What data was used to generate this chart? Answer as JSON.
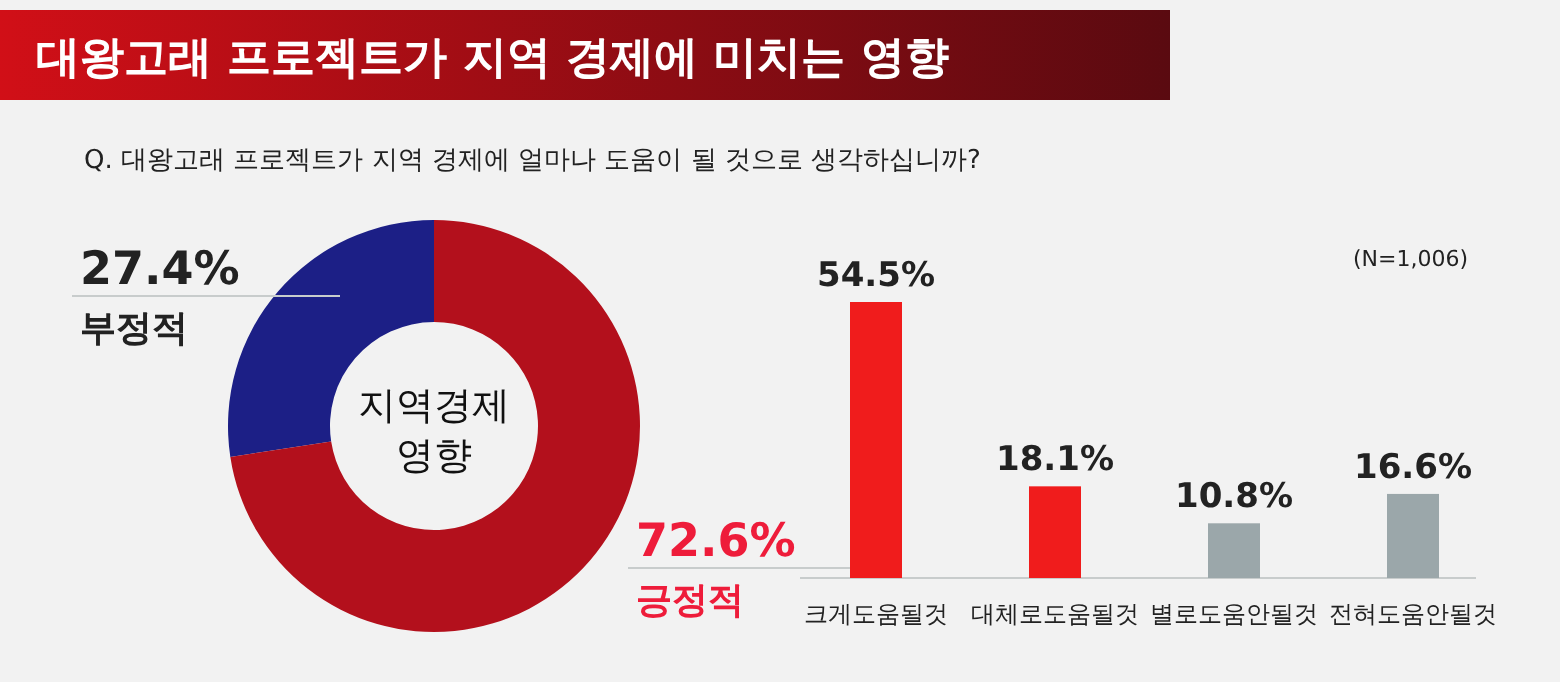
{
  "chart_data": [
    {
      "type": "donut",
      "title": "대왕고래 프로젝트가 지역 경제에 미치는 영향",
      "subtitle": "Q. 대왕고래 프로젝트가 지역 경제에 얼마나 도움이 될 것으로 생각하십니까?",
      "categories": [
        "부정적",
        "긍정적"
      ],
      "values": [
        27.4,
        72.6
      ],
      "colors": [
        "#1c1f86",
        "#b3101c"
      ],
      "value_labels": [
        "27.4%",
        "72.6%"
      ],
      "annotations": [
        "지역경제 영향"
      ]
    },
    {
      "type": "bar",
      "categories": [
        "크게도움될것",
        "대체로도움될것",
        "별로도움안될것",
        "전혀도움안될것"
      ],
      "values": [
        54.5,
        18.1,
        10.8,
        16.6
      ],
      "colors": [
        "#f01c1c",
        "#f01c1c",
        "#9ba7aa",
        "#9ba7aa"
      ],
      "value_labels": [
        "54.5%",
        "18.1%",
        "10.8%",
        "16.6%"
      ],
      "annotations": [
        "(N=1,006)"
      ]
    }
  ]
}
